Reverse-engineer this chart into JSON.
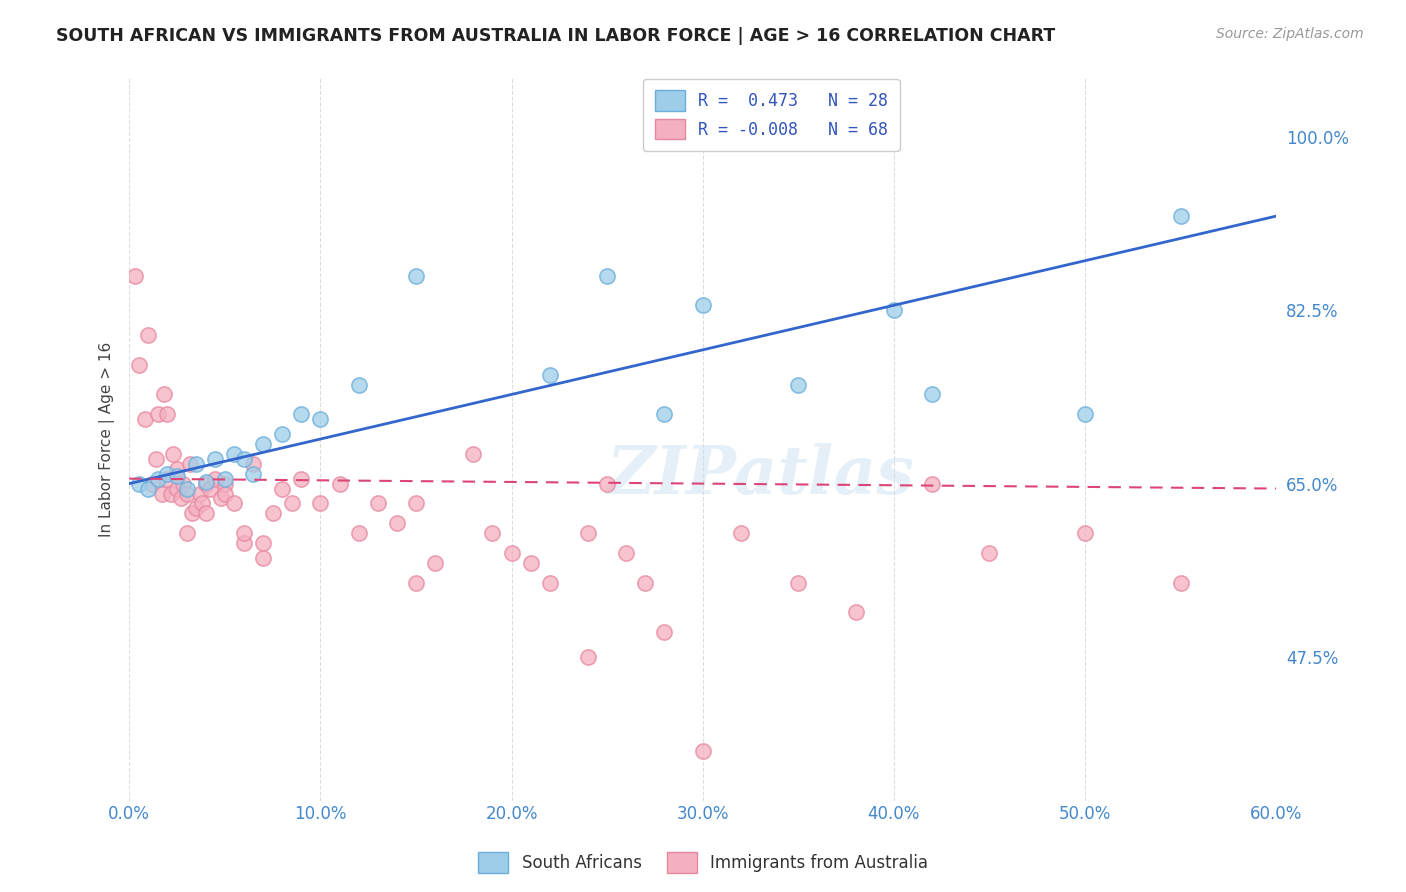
{
  "title": "SOUTH AFRICAN VS IMMIGRANTS FROM AUSTRALIA IN LABOR FORCE | AGE > 16 CORRELATION CHART",
  "source": "Source: ZipAtlas.com",
  "xlabel_values": [
    0.0,
    10.0,
    20.0,
    30.0,
    40.0,
    50.0,
    60.0
  ],
  "ylabel_values": [
    47.5,
    65.0,
    82.5,
    100.0
  ],
  "ylabel_label": "In Labor Force | Age > 16",
  "xlim": [
    0.0,
    60.0
  ],
  "ylim": [
    33.0,
    106.0
  ],
  "legend_r1": "R =  0.473",
  "legend_n1": "N = 28",
  "legend_r2": "R = -0.008",
  "legend_n2": "N = 68",
  "legend_label1": "South Africans",
  "legend_label2": "Immigrants from Australia",
  "blue_color": "#9dcde8",
  "pink_color": "#f4afc0",
  "blue_edge_color": "#6aaedc",
  "pink_edge_color": "#e888a0",
  "blue_line_color": "#3366cc",
  "pink_line_color": "#dd4477",
  "watermark": "ZIPatlas",
  "blue_dots_x": [
    0.5,
    1.0,
    1.5,
    2.0,
    2.5,
    3.0,
    3.5,
    4.0,
    4.5,
    5.0,
    5.5,
    6.0,
    6.5,
    7.0,
    8.0,
    9.0,
    10.0,
    12.0,
    15.0,
    22.0,
    25.0,
    28.0,
    30.0,
    35.0,
    40.0,
    42.0,
    50.0,
    55.0
  ],
  "blue_dots_y": [
    65.0,
    64.5,
    65.5,
    66.0,
    65.8,
    64.5,
    67.0,
    65.2,
    67.5,
    65.5,
    68.0,
    67.5,
    66.0,
    69.0,
    70.0,
    72.0,
    71.5,
    75.0,
    86.0,
    76.0,
    86.0,
    72.0,
    83.0,
    75.0,
    82.5,
    74.0,
    72.0,
    92.0
  ],
  "pink_dots_x": [
    0.3,
    0.5,
    0.8,
    1.0,
    1.2,
    1.4,
    1.5,
    1.7,
    1.8,
    2.0,
    2.0,
    2.2,
    2.3,
    2.5,
    2.5,
    2.7,
    2.8,
    3.0,
    3.0,
    3.2,
    3.3,
    3.5,
    3.7,
    3.8,
    4.0,
    4.0,
    4.2,
    4.5,
    4.8,
    5.0,
    5.0,
    5.5,
    6.0,
    6.0,
    6.5,
    7.0,
    7.0,
    7.5,
    8.0,
    8.5,
    9.0,
    10.0,
    11.0,
    12.0,
    13.0,
    14.0,
    15.0,
    15.0,
    16.0,
    18.0,
    19.0,
    20.0,
    21.0,
    22.0,
    24.0,
    24.0,
    25.0,
    26.0,
    27.0,
    28.0,
    30.0,
    32.0,
    35.0,
    38.0,
    42.0,
    45.0,
    50.0,
    55.0
  ],
  "pink_dots_y": [
    86.0,
    77.0,
    71.5,
    80.0,
    65.0,
    67.5,
    72.0,
    64.0,
    74.0,
    72.0,
    65.5,
    64.0,
    68.0,
    66.5,
    64.5,
    63.5,
    65.0,
    64.0,
    60.0,
    67.0,
    62.0,
    62.5,
    64.0,
    63.0,
    62.0,
    65.0,
    64.5,
    65.5,
    63.5,
    65.0,
    64.0,
    63.0,
    59.0,
    60.0,
    67.0,
    59.0,
    57.5,
    62.0,
    64.5,
    63.0,
    65.5,
    63.0,
    65.0,
    60.0,
    63.0,
    61.0,
    55.0,
    63.0,
    57.0,
    68.0,
    60.0,
    58.0,
    57.0,
    55.0,
    60.0,
    47.5,
    65.0,
    58.0,
    55.0,
    50.0,
    38.0,
    60.0,
    55.0,
    52.0,
    65.0,
    58.0,
    60.0,
    55.0
  ]
}
